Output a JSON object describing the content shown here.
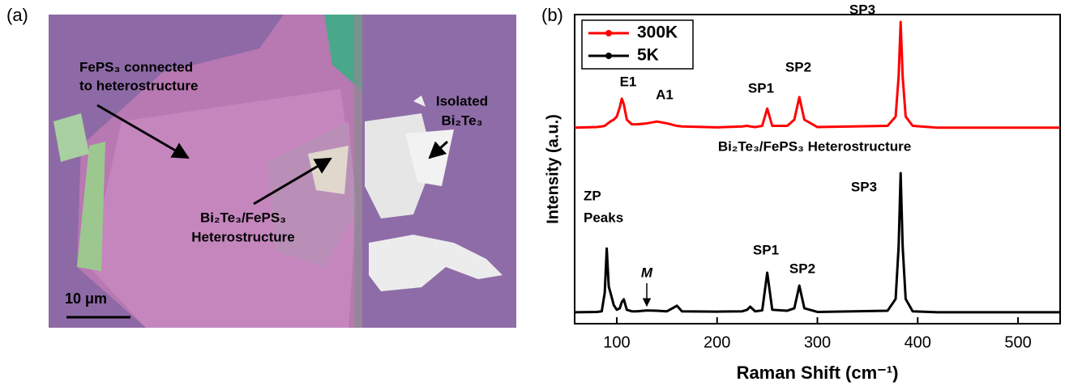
{
  "panel_labels": [
    "(a)",
    "(b)"
  ],
  "image_panel": {
    "labels": [
      "FePS₃ connected",
      "to heterostructure",
      "Isolated",
      "Bi₂Te₃",
      "Bi₂Te₃/FePS₃",
      "Heterostructure"
    ],
    "scale_bar": "10 μm"
  },
  "chart_data": {
    "type": "line",
    "xlabel": "Raman Shift (cm⁻¹)",
    "ylabel": "Intensity (a.u.)",
    "xlim": [
      58,
      542
    ],
    "ylim": [
      0,
      100
    ],
    "xticks": [
      100,
      200,
      300,
      400,
      500
    ],
    "legend": "top-left",
    "annotations": [
      "E1",
      "A1",
      "SP1",
      "SP2",
      "SP3",
      "Bi₂Te₃/FePS₃ Heterostructure",
      "ZP",
      "Peaks",
      "M",
      "SP1",
      "SP2",
      "SP3"
    ],
    "x": [
      58,
      80,
      85,
      88,
      90,
      92,
      94,
      97,
      100,
      103,
      105,
      107,
      110,
      115,
      120,
      130,
      140,
      150,
      160,
      165,
      200,
      225,
      230,
      233,
      238,
      245,
      250,
      255,
      270,
      277,
      282,
      287,
      300,
      370,
      378,
      381,
      383,
      385,
      388,
      395,
      420,
      542
    ],
    "series": [
      {
        "name": "300K",
        "color": "#ff0000",
        "values": [
          63.4,
          63.6,
          63.8,
          64,
          64.5,
          65,
          65.5,
          66,
          67,
          70,
          72.8,
          71,
          66,
          64.5,
          64.5,
          64.8,
          65.4,
          64.8,
          64,
          63.8,
          63.5,
          63.8,
          64,
          63.8,
          63.6,
          64,
          69.6,
          64,
          64,
          66,
          73.3,
          66,
          63.6,
          64,
          67,
          80,
          97.6,
          80,
          67,
          64,
          63.4,
          63.4
        ]
      },
      {
        "name": "5K",
        "color": "#000000",
        "values": [
          3.7,
          3.8,
          4,
          10,
          24.3,
          12,
          9.7,
          6,
          4.5,
          5,
          7,
          7.9,
          4.5,
          4,
          4,
          4.3,
          4.2,
          4,
          5.8,
          4,
          3.9,
          4,
          4.5,
          5.5,
          4,
          4.3,
          16.5,
          4.5,
          4.2,
          5,
          12.3,
          5,
          3.8,
          4.2,
          8,
          25,
          48.7,
          25,
          8,
          4,
          3.7,
          3.7
        ]
      }
    ]
  }
}
